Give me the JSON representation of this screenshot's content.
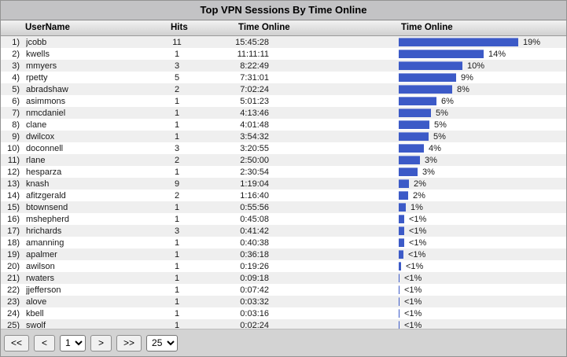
{
  "title": "Top VPN Sessions By Time Online",
  "columns": {
    "user": "UserName",
    "hits": "Hits",
    "time": "Time Online",
    "bar": "Time Online"
  },
  "rows": [
    {
      "rank": "1)",
      "user": "jcobb",
      "hits": "11",
      "time": "15:45:28",
      "pct": "19%"
    },
    {
      "rank": "2)",
      "user": "kwells",
      "hits": "1",
      "time": "11:11:11",
      "pct": "14%"
    },
    {
      "rank": "3)",
      "user": "mmyers",
      "hits": "3",
      "time": "8:22:49",
      "pct": "10%"
    },
    {
      "rank": "4)",
      "user": "rpetty",
      "hits": "5",
      "time": "7:31:01",
      "pct": "9%"
    },
    {
      "rank": "5)",
      "user": "abradshaw",
      "hits": "2",
      "time": "7:02:24",
      "pct": "8%"
    },
    {
      "rank": "6)",
      "user": "asimmons",
      "hits": "1",
      "time": "5:01:23",
      "pct": "6%"
    },
    {
      "rank": "7)",
      "user": "nmcdaniel",
      "hits": "1",
      "time": "4:13:46",
      "pct": "5%"
    },
    {
      "rank": "8)",
      "user": "clane",
      "hits": "1",
      "time": "4:01:48",
      "pct": "5%"
    },
    {
      "rank": "9)",
      "user": "dwilcox",
      "hits": "1",
      "time": "3:54:32",
      "pct": "5%"
    },
    {
      "rank": "10)",
      "user": "doconnell",
      "hits": "3",
      "time": "3:20:55",
      "pct": "4%"
    },
    {
      "rank": "11)",
      "user": "rlane",
      "hits": "2",
      "time": "2:50:00",
      "pct": "3%"
    },
    {
      "rank": "12)",
      "user": "hesparza",
      "hits": "1",
      "time": "2:30:54",
      "pct": "3%"
    },
    {
      "rank": "13)",
      "user": "knash",
      "hits": "9",
      "time": "1:19:04",
      "pct": "2%"
    },
    {
      "rank": "14)",
      "user": "afitzgerald",
      "hits": "2",
      "time": "1:16:40",
      "pct": "2%"
    },
    {
      "rank": "15)",
      "user": "btownsend",
      "hits": "1",
      "time": "0:55:56",
      "pct": "1%"
    },
    {
      "rank": "16)",
      "user": "mshepherd",
      "hits": "1",
      "time": "0:45:08",
      "pct": "<1%"
    },
    {
      "rank": "17)",
      "user": "hrichards",
      "hits": "3",
      "time": "0:41:42",
      "pct": "<1%"
    },
    {
      "rank": "18)",
      "user": "amanning",
      "hits": "1",
      "time": "0:40:38",
      "pct": "<1%"
    },
    {
      "rank": "19)",
      "user": "apalmer",
      "hits": "1",
      "time": "0:36:18",
      "pct": "<1%"
    },
    {
      "rank": "20)",
      "user": "awilson",
      "hits": "1",
      "time": "0:19:26",
      "pct": "<1%"
    },
    {
      "rank": "21)",
      "user": "rwaters",
      "hits": "1",
      "time": "0:09:18",
      "pct": "<1%"
    },
    {
      "rank": "22)",
      "user": "jjefferson",
      "hits": "1",
      "time": "0:07:42",
      "pct": "<1%"
    },
    {
      "rank": "23)",
      "user": "alove",
      "hits": "1",
      "time": "0:03:32",
      "pct": "<1%"
    },
    {
      "rank": "24)",
      "user": "kbell",
      "hits": "1",
      "time": "0:03:16",
      "pct": "<1%"
    },
    {
      "rank": "25)",
      "user": "swolf",
      "hits": "1",
      "time": "0:02:24",
      "pct": "<1%"
    }
  ],
  "pagination": {
    "first": "<<",
    "prev": "<",
    "page": "1",
    "next": ">",
    "last": ">>",
    "page_size": "25"
  },
  "colors": {
    "bar": "#3c5ac7",
    "row_alt": "#efefef",
    "titlebar": "#c3c3c5"
  },
  "chart_data": {
    "type": "bar",
    "orientation": "horizontal",
    "categories": [
      "jcobb",
      "kwells",
      "mmyers",
      "rpetty",
      "abradshaw",
      "asimmons",
      "nmcdaniel",
      "clane",
      "dwilcox",
      "doconnell",
      "rlane",
      "hesparza",
      "knash",
      "afitzgerald",
      "btownsend",
      "mshepherd",
      "hrichards",
      "amanning",
      "apalmer",
      "awilson",
      "rwaters",
      "jjefferson",
      "alove",
      "kbell",
      "swolf"
    ],
    "values_percent_labels": [
      "19%",
      "14%",
      "10%",
      "9%",
      "8%",
      "6%",
      "5%",
      "5%",
      "5%",
      "4%",
      "3%",
      "3%",
      "2%",
      "2%",
      "1%",
      "<1%",
      "<1%",
      "<1%",
      "<1%",
      "<1%",
      "<1%",
      "<1%",
      "<1%",
      "<1%",
      "<1%"
    ],
    "title": "Top VPN Sessions By Time Online",
    "value_unit": "percent of total time online"
  }
}
